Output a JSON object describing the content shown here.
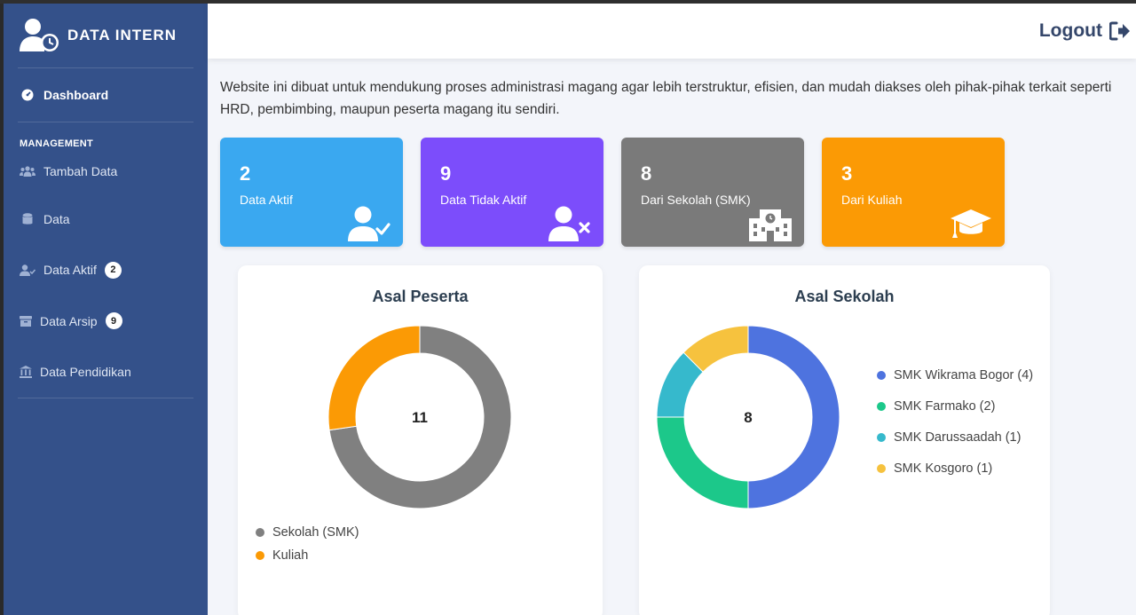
{
  "brand": {
    "title": "DATA INTERN"
  },
  "sidebar": {
    "dashboard": "Dashboard",
    "section": "MANAGEMENT",
    "items": [
      {
        "label": "Tambah Data",
        "icon": "users-icon"
      },
      {
        "label": "Data",
        "icon": "database-icon"
      },
      {
        "label": "Data Aktif",
        "icon": "user-check-icon",
        "badge": "2"
      },
      {
        "label": "Data Arsip",
        "icon": "archive-icon",
        "badge": "9"
      },
      {
        "label": "Data Pendidikan",
        "icon": "institution-icon"
      }
    ]
  },
  "header": {
    "logout": "Logout"
  },
  "intro": "Website ini dibuat untuk mendukung proses administrasi magang agar lebih terstruktur, efisien, dan mudah diakses oleh pihak-pihak terkait seperti HRD, pembimbing, maupun peserta magang itu sendiri.",
  "cards": [
    {
      "value": "2",
      "label": "Data Aktif",
      "color": "#3aa8f0",
      "icon": "user-check-icon"
    },
    {
      "value": "9",
      "label": "Data Tidak Aktif",
      "color": "#7c4dfb",
      "icon": "user-x-icon"
    },
    {
      "value": "8",
      "label": "Dari Sekolah (SMK)",
      "color": "#7a7a7a",
      "icon": "school-icon"
    },
    {
      "value": "3",
      "label": "Dari Kuliah",
      "color": "#fb9a05",
      "icon": "graduation-cap-icon"
    }
  ],
  "chart_data": [
    {
      "type": "pie",
      "title": "Asal Peserta",
      "center_label": "11",
      "categories": [
        "Sekolah (SMK)",
        "Kuliah"
      ],
      "values": [
        8,
        3
      ],
      "colors": [
        "#808080",
        "#fb9a05"
      ],
      "legend_position": "bottom-left"
    },
    {
      "type": "pie",
      "title": "Asal Sekolah",
      "center_label": "8",
      "categories": [
        "SMK Wikrama Bogor (4)",
        "SMK Farmako (2)",
        "SMK Darussaadah (1)",
        "SMK Kosgoro (1)"
      ],
      "values": [
        4,
        2,
        1,
        1
      ],
      "colors": [
        "#4e73df",
        "#1cc88a",
        "#36b9cc",
        "#f6c23e"
      ],
      "legend_position": "right"
    }
  ]
}
